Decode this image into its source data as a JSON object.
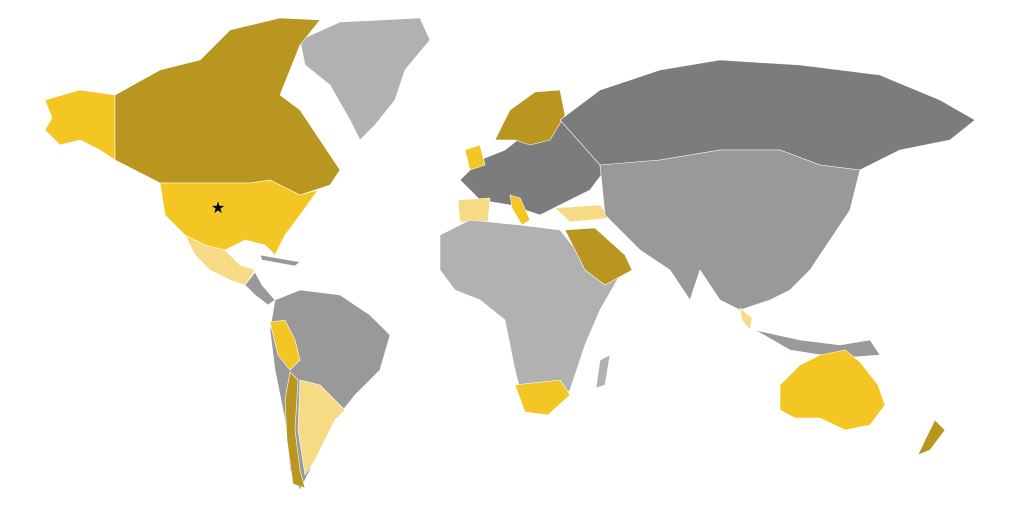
{
  "map": {
    "projection": "world",
    "colors": {
      "background": "#ffffff",
      "dark_gold": "#b8961f",
      "yellow": "#f3c623",
      "light_yellow": "#f6da84",
      "light_gray": "#b1b1b1",
      "mid_gray": "#999999",
      "dark_gray": "#7c7c7c"
    },
    "marker": {
      "icon": "star",
      "color": "#000000",
      "location": "United States"
    }
  }
}
